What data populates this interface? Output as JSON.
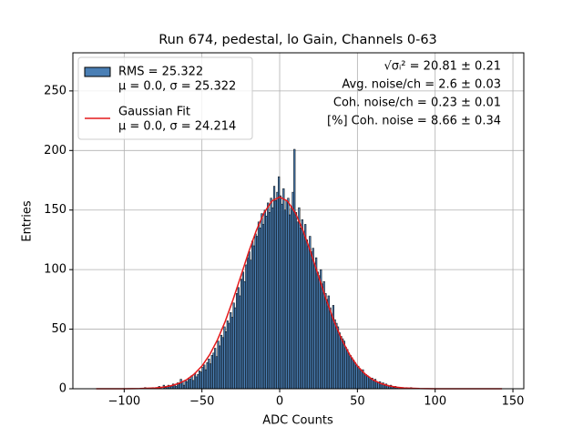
{
  "chart_data": {
    "type": "histogram",
    "title": "Run 674, pedestal, lo Gain, Channels 0-63",
    "xlabel": "ADC Counts",
    "ylabel": "Entries",
    "xlim": [
      -133,
      157
    ],
    "ylim": [
      0,
      282
    ],
    "xticks": [
      {
        "value": -100,
        "label": "−100"
      },
      {
        "value": -50,
        "label": "−50"
      },
      0,
      50,
      100,
      150
    ],
    "yticks": [
      0,
      50,
      100,
      150,
      200,
      250
    ],
    "grid": true,
    "legend": "upper left",
    "bins": [
      -90,
      -89,
      -88,
      -87,
      -86,
      -85,
      -84,
      -83,
      -82,
      -81,
      -80,
      -79,
      -78,
      -77,
      -76,
      -75,
      -74,
      -73,
      -72,
      -71,
      -70,
      -69,
      -68,
      -67,
      -66,
      -65,
      -64,
      -63,
      -62,
      -61,
      -60,
      -59,
      -58,
      -57,
      -56,
      -55,
      -54,
      -53,
      -52,
      -51,
      -50,
      -49,
      -48,
      -47,
      -46,
      -45,
      -44,
      -43,
      -42,
      -41,
      -40,
      -39,
      -38,
      -37,
      -36,
      -35,
      -34,
      -33,
      -32,
      -31,
      -30,
      -29,
      -28,
      -27,
      -26,
      -25,
      -24,
      -23,
      -22,
      -21,
      -20,
      -19,
      -18,
      -17,
      -16,
      -15,
      -14,
      -13,
      -12,
      -11,
      -10,
      -9,
      -8,
      -7,
      -6,
      -5,
      -4,
      -3,
      -2,
      -1,
      0,
      1,
      2,
      3,
      4,
      5,
      6,
      7,
      8,
      9,
      10,
      11,
      12,
      13,
      14,
      15,
      16,
      17,
      18,
      19,
      20,
      21,
      22,
      23,
      24,
      25,
      26,
      27,
      28,
      29,
      30,
      31,
      32,
      33,
      34,
      35,
      36,
      37,
      38,
      39,
      40,
      41,
      42,
      43,
      44,
      45,
      46,
      47,
      48,
      49,
      50,
      51,
      52,
      53,
      54,
      55,
      56,
      57,
      58,
      59,
      60,
      61,
      62,
      63,
      64,
      65,
      66,
      67,
      68,
      69,
      70,
      71,
      72,
      73,
      74,
      75,
      76,
      77,
      78,
      79,
      80,
      81,
      82,
      83,
      84,
      85,
      86,
      87,
      88,
      89,
      90
    ],
    "series": [
      {
        "type": "histogram",
        "name": [
          "RMS = 25.322",
          "μ = 0.0, σ = 25.322"
        ],
        "color": "#4a7fb5",
        "edgecolor": "#000000",
        "values": [
          0,
          0,
          0,
          1,
          0,
          0,
          0,
          0,
          1,
          0,
          1,
          0,
          2,
          1,
          0,
          3,
          1,
          2,
          3,
          2,
          2,
          4,
          3,
          2,
          5,
          4,
          8,
          6,
          3,
          7,
          6,
          9,
          8,
          11,
          7,
          13,
          10,
          12,
          15,
          14,
          18,
          20,
          16,
          22,
          25,
          21,
          28,
          30,
          34,
          27,
          40,
          36,
          45,
          43,
          52,
          48,
          57,
          55,
          64,
          60,
          72,
          68,
          80,
          85,
          78,
          92,
          98,
          90,
          104,
          110,
          115,
          108,
          124,
          120,
          130,
          128,
          140,
          135,
          147,
          138,
          150,
          145,
          156,
          148,
          160,
          152,
          170,
          158,
          165,
          178,
          162,
          155,
          168,
          150,
          158,
          160,
          146,
          152,
          165,
          201,
          148,
          140,
          152,
          135,
          142,
          130,
          138,
          125,
          120,
          128,
          115,
          118,
          105,
          110,
          98,
          95,
          100,
          88,
          90,
          80,
          75,
          78,
          68,
          62,
          70,
          58,
          55,
          52,
          47,
          44,
          42,
          40,
          35,
          33,
          30,
          28,
          26,
          24,
          22,
          20,
          19,
          17,
          15,
          16,
          13,
          12,
          11,
          10,
          8,
          9,
          7,
          8,
          6,
          5,
          6,
          4,
          5,
          3,
          4,
          3,
          2,
          3,
          2,
          1,
          2,
          1,
          1,
          0,
          1,
          1,
          0,
          1,
          0,
          0,
          1,
          0,
          0,
          0,
          0,
          0
        ]
      },
      {
        "type": "line",
        "name": [
          "Gaussian Fit",
          "μ = 0.0, σ = 24.214"
        ],
        "color": "#e41a1c",
        "x": [
          -118,
          -110,
          -100,
          -90,
          -80,
          -75,
          -70,
          -65,
          -60,
          -55,
          -50,
          -45,
          -40,
          -35,
          -30,
          -25,
          -20,
          -15,
          -10,
          -5,
          0,
          5,
          10,
          15,
          20,
          25,
          30,
          35,
          40,
          45,
          50,
          55,
          60,
          65,
          70,
          75,
          80,
          90,
          100,
          110,
          120,
          130,
          143
        ],
        "values": [
          0,
          0,
          0,
          0.2,
          0.7,
          1.3,
          2.5,
          4.4,
          7.5,
          12.2,
          19.1,
          28.6,
          41.1,
          56.6,
          74.7,
          94.5,
          114.5,
          132.9,
          147.8,
          157.6,
          161,
          157.6,
          147.8,
          132.9,
          114.5,
          94.5,
          74.7,
          56.6,
          41.1,
          28.6,
          19.1,
          12.2,
          7.5,
          4.4,
          2.5,
          1.3,
          0.7,
          0.2,
          0,
          0,
          0,
          0,
          0
        ]
      }
    ],
    "annotations": [
      "√σᵢ² = 20.81 ± 0.21",
      "Avg. noise/ch = 2.6 ± 0.03",
      "Coh. noise/ch = 0.23 ± 0.01",
      "[%] Coh. noise = 8.66 ± 0.34"
    ]
  }
}
